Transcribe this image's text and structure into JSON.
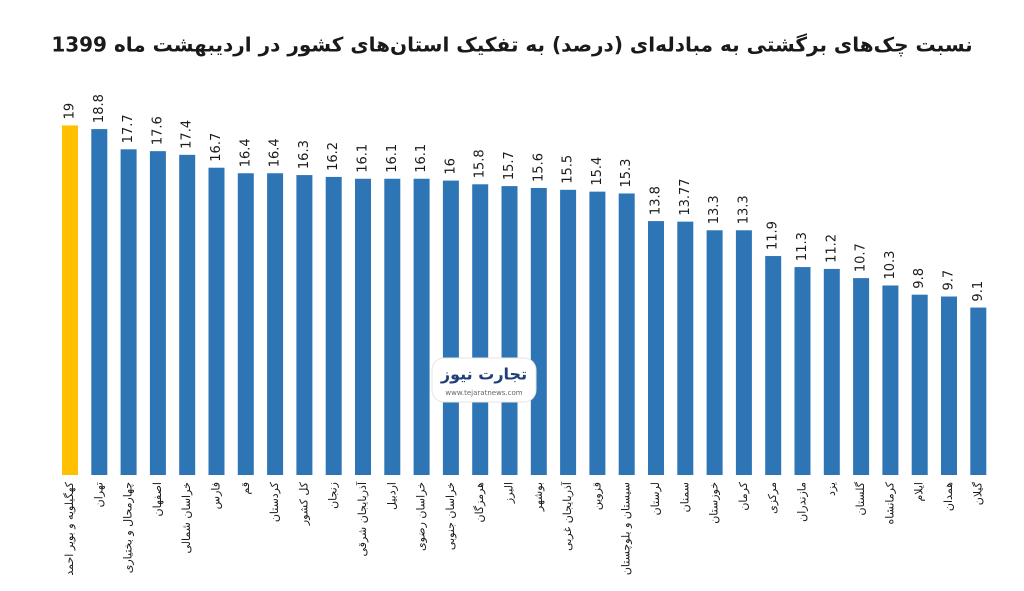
{
  "chart_data": {
    "type": "bar",
    "title": "نسبت چک‌های برگشتی به مبادله‌ای (درصد) به تفکیک استان‌های کشور در اردیبهشت ماه 1399",
    "categories": [
      "کهگیلویه و بویر احمد",
      "تهران",
      "چهارمحال و بختیاری",
      "اصفهان",
      "خراسان شمالی",
      "فارس",
      "قم",
      "کردستان",
      "کل کشور",
      "زنجان",
      "آذربایجان شرقی",
      "اردبیل",
      "خراسان رضوی",
      "خراسان جنوبی",
      "هرمزگان",
      "البرز",
      "بوشهر",
      "آذربایجان غربی",
      "قزوین",
      "سیستان و بلوچستان",
      "لرستان",
      "سمنان",
      "خوزستان",
      "کرمان",
      "مرکزی",
      "مازندران",
      "یزد",
      "گلستان",
      "کرمانشاه",
      "ایلام",
      "همدان",
      "گیلان"
    ],
    "values": [
      19,
      18.8,
      17.7,
      17.6,
      17.4,
      16.7,
      16.4,
      16.4,
      16.3,
      16.2,
      16.1,
      16.1,
      16.1,
      16,
      15.8,
      15.7,
      15.6,
      15.5,
      15.4,
      15.3,
      13.8,
      13.77,
      13.3,
      13.3,
      11.9,
      11.3,
      11.2,
      10.7,
      10.3,
      9.8,
      9.7,
      9.1
    ],
    "colors": [
      "#ffc000",
      "#2e75b6",
      "#2e75b6",
      "#2e75b6",
      "#2e75b6",
      "#2e75b6",
      "#2e75b6",
      "#2e75b6",
      "#2e75b6",
      "#2e75b6",
      "#2e75b6",
      "#2e75b6",
      "#2e75b6",
      "#2e75b6",
      "#2e75b6",
      "#2e75b6",
      "#2e75b6",
      "#2e75b6",
      "#2e75b6",
      "#2e75b6",
      "#2e75b6",
      "#2e75b6",
      "#2e75b6",
      "#2e75b6",
      "#2e75b6",
      "#2e75b6",
      "#2e75b6",
      "#2e75b6",
      "#2e75b6",
      "#2e75b6",
      "#2e75b6",
      "#2e75b6"
    ]
  },
  "watermark": {
    "brand": "تجارت نیوز",
    "url": "www.tejaratnews.com"
  }
}
